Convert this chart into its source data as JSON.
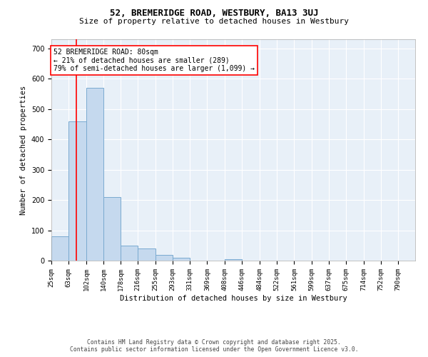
{
  "title": "52, BREMERIDGE ROAD, WESTBURY, BA13 3UJ",
  "subtitle": "Size of property relative to detached houses in Westbury",
  "xlabel": "Distribution of detached houses by size in Westbury",
  "ylabel": "Number of detached properties",
  "footer_line1": "Contains HM Land Registry data © Crown copyright and database right 2025.",
  "footer_line2": "Contains public sector information licensed under the Open Government Licence v3.0.",
  "annotation_title": "52 BREMERIDGE ROAD: 80sqm",
  "annotation_line2": "← 21% of detached houses are smaller (289)",
  "annotation_line3": "79% of semi-detached houses are larger (1,099) →",
  "bar_color": "#c5d9ee",
  "bar_edge_color": "#7aaad0",
  "red_line_x": 80,
  "background_color": "#e8f0f8",
  "categories": [
    "25sqm",
    "63sqm",
    "102sqm",
    "140sqm",
    "178sqm",
    "216sqm",
    "255sqm",
    "293sqm",
    "331sqm",
    "369sqm",
    "408sqm",
    "446sqm",
    "484sqm",
    "522sqm",
    "561sqm",
    "599sqm",
    "637sqm",
    "675sqm",
    "714sqm",
    "752sqm",
    "790sqm"
  ],
  "bin_edges": [
    25,
    63,
    102,
    140,
    178,
    216,
    255,
    293,
    331,
    369,
    408,
    446,
    484,
    522,
    561,
    599,
    637,
    675,
    714,
    752,
    790
  ],
  "values": [
    80,
    460,
    570,
    210,
    50,
    40,
    20,
    10,
    0,
    0,
    5,
    0,
    0,
    0,
    0,
    0,
    0,
    0,
    0,
    0,
    0
  ],
  "ylim": [
    0,
    730
  ],
  "yticks": [
    0,
    100,
    200,
    300,
    400,
    500,
    600,
    700
  ]
}
